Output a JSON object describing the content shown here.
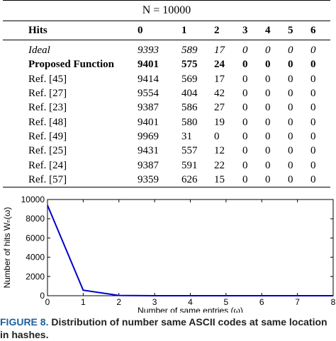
{
  "table": {
    "n_label": "N = 10000",
    "columns": [
      "Hits",
      "0",
      "1",
      "2",
      "3",
      "4",
      "5",
      "6"
    ],
    "rows": [
      {
        "name": "Ideal",
        "values": [
          "9393",
          "589",
          "17",
          "0",
          "0",
          "0",
          "0"
        ]
      },
      {
        "name": "Proposed Function",
        "values": [
          "9401",
          "575",
          "24",
          "0",
          "0",
          "0",
          "0"
        ]
      },
      {
        "name": "Ref. [45]",
        "values": [
          "9414",
          "569",
          "17",
          "0",
          "0",
          "0",
          "0"
        ]
      },
      {
        "name": "Ref. [27]",
        "values": [
          "9554",
          "404",
          "42",
          "0",
          "0",
          "0",
          "0"
        ]
      },
      {
        "name": "Ref. [23]",
        "values": [
          "9387",
          "586",
          "27",
          "0",
          "0",
          "0",
          "0"
        ]
      },
      {
        "name": "Ref. [48]",
        "values": [
          "9401",
          "580",
          "19",
          "0",
          "0",
          "0",
          "0"
        ]
      },
      {
        "name": "Ref. [49]",
        "values": [
          "9969",
          "31",
          "0",
          "0",
          "0",
          "0",
          "0"
        ]
      },
      {
        "name": "Ref. [25]",
        "values": [
          "9431",
          "557",
          "12",
          "0",
          "0",
          "0",
          "0"
        ]
      },
      {
        "name": "Ref. [24]",
        "values": [
          "9387",
          "591",
          "22",
          "0",
          "0",
          "0",
          "0"
        ]
      },
      {
        "name": "Ref. [57]",
        "values": [
          "9359",
          "626",
          "15",
          "0",
          "0",
          "0",
          "0"
        ]
      }
    ]
  },
  "chart_data": {
    "type": "line",
    "x": [
      0,
      1,
      2,
      3,
      4,
      5,
      6,
      7,
      8
    ],
    "series": [
      {
        "values": [
          9401,
          575,
          24,
          0,
          0,
          0,
          0,
          0,
          0
        ]
      }
    ],
    "xlabel": "Number of same entries (ω)",
    "ylabel": "Number of hits Wₙ(ω)",
    "xlim": [
      0,
      8
    ],
    "ylim": [
      0,
      10000
    ],
    "xticks": [
      "0",
      "1",
      "2",
      "3",
      "4",
      "5",
      "6",
      "7",
      "8"
    ],
    "yticks": [
      "0",
      "2000",
      "4000",
      "6000",
      "8000",
      "10000"
    ],
    "line_color": "#0000cc",
    "grid": false
  },
  "caption": {
    "label": "FIGURE 8.",
    "text": "Distribution of number same ASCII codes at same location in hashes."
  }
}
